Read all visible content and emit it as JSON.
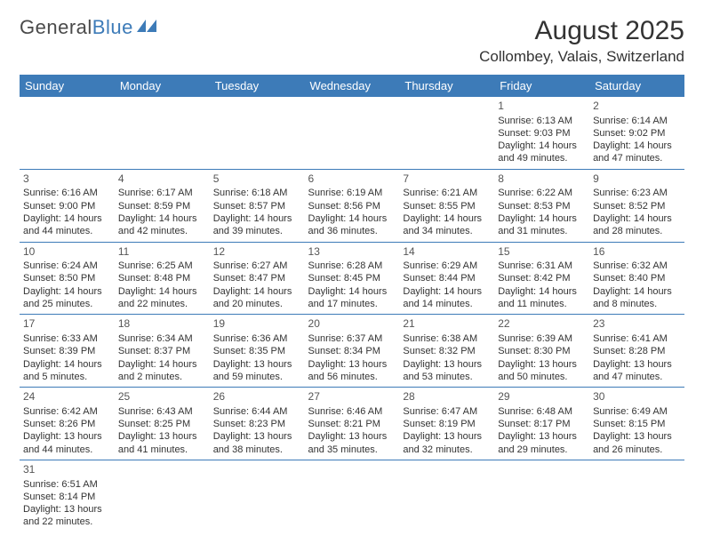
{
  "logo": {
    "text1": "General",
    "text2": "Blue"
  },
  "title": "August 2025",
  "location": "Collombey, Valais, Switzerland",
  "colors": {
    "header_bg": "#3d7bb8",
    "header_fg": "#ffffff",
    "text": "#333333",
    "page_bg": "#ffffff",
    "divider": "#3d7bb8"
  },
  "day_headers": [
    "Sunday",
    "Monday",
    "Tuesday",
    "Wednesday",
    "Thursday",
    "Friday",
    "Saturday"
  ],
  "weeks": [
    [
      null,
      null,
      null,
      null,
      null,
      {
        "n": "1",
        "sr": "6:13 AM",
        "ss": "9:03 PM",
        "dl": "14 hours and 49 minutes."
      },
      {
        "n": "2",
        "sr": "6:14 AM",
        "ss": "9:02 PM",
        "dl": "14 hours and 47 minutes."
      }
    ],
    [
      {
        "n": "3",
        "sr": "6:16 AM",
        "ss": "9:00 PM",
        "dl": "14 hours and 44 minutes."
      },
      {
        "n": "4",
        "sr": "6:17 AM",
        "ss": "8:59 PM",
        "dl": "14 hours and 42 minutes."
      },
      {
        "n": "5",
        "sr": "6:18 AM",
        "ss": "8:57 PM",
        "dl": "14 hours and 39 minutes."
      },
      {
        "n": "6",
        "sr": "6:19 AM",
        "ss": "8:56 PM",
        "dl": "14 hours and 36 minutes."
      },
      {
        "n": "7",
        "sr": "6:21 AM",
        "ss": "8:55 PM",
        "dl": "14 hours and 34 minutes."
      },
      {
        "n": "8",
        "sr": "6:22 AM",
        "ss": "8:53 PM",
        "dl": "14 hours and 31 minutes."
      },
      {
        "n": "9",
        "sr": "6:23 AM",
        "ss": "8:52 PM",
        "dl": "14 hours and 28 minutes."
      }
    ],
    [
      {
        "n": "10",
        "sr": "6:24 AM",
        "ss": "8:50 PM",
        "dl": "14 hours and 25 minutes."
      },
      {
        "n": "11",
        "sr": "6:25 AM",
        "ss": "8:48 PM",
        "dl": "14 hours and 22 minutes."
      },
      {
        "n": "12",
        "sr": "6:27 AM",
        "ss": "8:47 PM",
        "dl": "14 hours and 20 minutes."
      },
      {
        "n": "13",
        "sr": "6:28 AM",
        "ss": "8:45 PM",
        "dl": "14 hours and 17 minutes."
      },
      {
        "n": "14",
        "sr": "6:29 AM",
        "ss": "8:44 PM",
        "dl": "14 hours and 14 minutes."
      },
      {
        "n": "15",
        "sr": "6:31 AM",
        "ss": "8:42 PM",
        "dl": "14 hours and 11 minutes."
      },
      {
        "n": "16",
        "sr": "6:32 AM",
        "ss": "8:40 PM",
        "dl": "14 hours and 8 minutes."
      }
    ],
    [
      {
        "n": "17",
        "sr": "6:33 AM",
        "ss": "8:39 PM",
        "dl": "14 hours and 5 minutes."
      },
      {
        "n": "18",
        "sr": "6:34 AM",
        "ss": "8:37 PM",
        "dl": "14 hours and 2 minutes."
      },
      {
        "n": "19",
        "sr": "6:36 AM",
        "ss": "8:35 PM",
        "dl": "13 hours and 59 minutes."
      },
      {
        "n": "20",
        "sr": "6:37 AM",
        "ss": "8:34 PM",
        "dl": "13 hours and 56 minutes."
      },
      {
        "n": "21",
        "sr": "6:38 AM",
        "ss": "8:32 PM",
        "dl": "13 hours and 53 minutes."
      },
      {
        "n": "22",
        "sr": "6:39 AM",
        "ss": "8:30 PM",
        "dl": "13 hours and 50 minutes."
      },
      {
        "n": "23",
        "sr": "6:41 AM",
        "ss": "8:28 PM",
        "dl": "13 hours and 47 minutes."
      }
    ],
    [
      {
        "n": "24",
        "sr": "6:42 AM",
        "ss": "8:26 PM",
        "dl": "13 hours and 44 minutes."
      },
      {
        "n": "25",
        "sr": "6:43 AM",
        "ss": "8:25 PM",
        "dl": "13 hours and 41 minutes."
      },
      {
        "n": "26",
        "sr": "6:44 AM",
        "ss": "8:23 PM",
        "dl": "13 hours and 38 minutes."
      },
      {
        "n": "27",
        "sr": "6:46 AM",
        "ss": "8:21 PM",
        "dl": "13 hours and 35 minutes."
      },
      {
        "n": "28",
        "sr": "6:47 AM",
        "ss": "8:19 PM",
        "dl": "13 hours and 32 minutes."
      },
      {
        "n": "29",
        "sr": "6:48 AM",
        "ss": "8:17 PM",
        "dl": "13 hours and 29 minutes."
      },
      {
        "n": "30",
        "sr": "6:49 AM",
        "ss": "8:15 PM",
        "dl": "13 hours and 26 minutes."
      }
    ],
    [
      {
        "n": "31",
        "sr": "6:51 AM",
        "ss": "8:14 PM",
        "dl": "13 hours and 22 minutes."
      },
      null,
      null,
      null,
      null,
      null,
      null
    ]
  ],
  "labels": {
    "sunrise": "Sunrise:",
    "sunset": "Sunset:",
    "daylight": "Daylight:"
  }
}
